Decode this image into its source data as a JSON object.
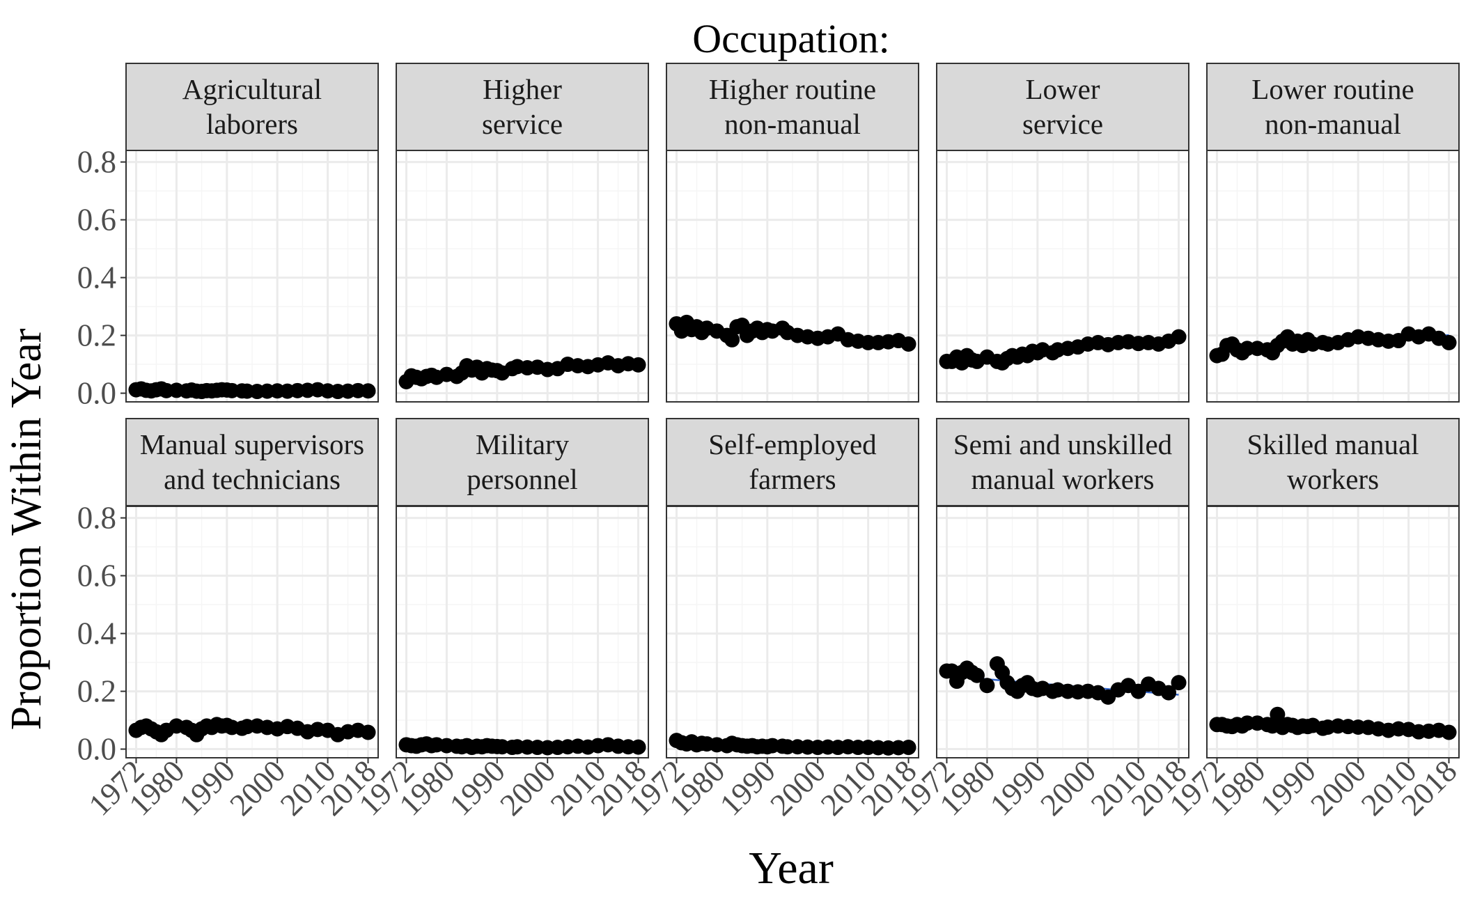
{
  "chart_data": {
    "type": "scatter",
    "title": "Occupation:",
    "xlabel": "Year",
    "ylabel": "Proportion Within Year",
    "xlim": [
      1970,
      2020
    ],
    "ylim": [
      -0.03,
      0.84
    ],
    "x_ticks": [
      1972,
      1980,
      1990,
      2000,
      2010,
      2018
    ],
    "x_tick_labels": [
      "1972",
      "1980",
      "1990",
      "2000",
      "2010",
      "2018"
    ],
    "y_ticks": [
      0,
      0.2,
      0.4,
      0.6,
      0.8
    ],
    "y_tick_labels": [
      "0.0",
      "0.2",
      "0.4",
      "0.6",
      "0.8"
    ],
    "grid": true,
    "layout": "facet 2 rows x 5 columns",
    "colors": {
      "point": "#000000",
      "strip_fill": "#d9d9d9",
      "strip_border": "#333333",
      "grid_major": "#ebebeb",
      "grid_minor": "#f5f5f5",
      "panel_border": "#333333",
      "trend_line": "#3366cc"
    },
    "years": [
      1972,
      1973,
      1974,
      1975,
      1976,
      1977,
      1978,
      1980,
      1982,
      1983,
      1984,
      1985,
      1986,
      1987,
      1988,
      1989,
      1990,
      1991,
      1993,
      1994,
      1996,
      1998,
      2000,
      2002,
      2004,
      2006,
      2008,
      2010,
      2012,
      2014,
      2016,
      2018
    ],
    "panels": [
      {
        "label_lines": [
          "Agricultural",
          "laborers"
        ],
        "values": [
          0.012,
          0.015,
          0.01,
          0.008,
          0.012,
          0.015,
          0.009,
          0.01,
          0.008,
          0.011,
          0.007,
          0.006,
          0.009,
          0.008,
          0.01,
          0.012,
          0.011,
          0.009,
          0.008,
          0.007,
          0.006,
          0.007,
          0.008,
          0.007,
          0.009,
          0.01,
          0.012,
          0.008,
          0.006,
          0.007,
          0.009,
          0.008
        ]
      },
      {
        "label_lines": [
          "Higher",
          "service"
        ],
        "values": [
          0.04,
          0.06,
          0.055,
          0.05,
          0.058,
          0.062,
          0.055,
          0.065,
          0.058,
          0.07,
          0.095,
          0.08,
          0.09,
          0.07,
          0.085,
          0.08,
          0.078,
          0.07,
          0.085,
          0.092,
          0.088,
          0.09,
          0.082,
          0.085,
          0.1,
          0.095,
          0.092,
          0.098,
          0.105,
          0.095,
          0.102,
          0.098
        ]
      },
      {
        "label_lines": [
          "Higher routine",
          "non-manual"
        ],
        "values": [
          0.24,
          0.215,
          0.245,
          0.22,
          0.23,
          0.21,
          0.225,
          0.215,
          0.2,
          0.185,
          0.23,
          0.235,
          0.2,
          0.215,
          0.225,
          0.21,
          0.22,
          0.215,
          0.225,
          0.21,
          0.2,
          0.195,
          0.19,
          0.195,
          0.205,
          0.185,
          0.18,
          0.175,
          0.175,
          0.178,
          0.182,
          0.17
        ]
      },
      {
        "label_lines": [
          "Lower",
          "service"
        ],
        "values": [
          0.11,
          0.11,
          0.125,
          0.105,
          0.13,
          0.115,
          0.11,
          0.125,
          0.11,
          0.105,
          0.12,
          0.13,
          0.125,
          0.135,
          0.13,
          0.145,
          0.14,
          0.15,
          0.14,
          0.15,
          0.155,
          0.16,
          0.17,
          0.175,
          0.168,
          0.175,
          0.178,
          0.172,
          0.175,
          0.17,
          0.18,
          0.195
        ]
      },
      {
        "label_lines": [
          "Lower routine",
          "non-manual"
        ],
        "values": [
          0.13,
          0.135,
          0.165,
          0.17,
          0.15,
          0.14,
          0.155,
          0.155,
          0.15,
          0.14,
          0.165,
          0.18,
          0.195,
          0.17,
          0.18,
          0.165,
          0.185,
          0.17,
          0.175,
          0.17,
          0.175,
          0.185,
          0.195,
          0.19,
          0.185,
          0.18,
          0.182,
          0.205,
          0.195,
          0.205,
          0.19,
          0.175
        ]
      },
      {
        "label_lines": [
          "Manual supervisors",
          "and technicians"
        ],
        "values": [
          0.065,
          0.075,
          0.08,
          0.07,
          0.06,
          0.05,
          0.065,
          0.08,
          0.075,
          0.065,
          0.05,
          0.07,
          0.08,
          0.075,
          0.085,
          0.08,
          0.082,
          0.075,
          0.072,
          0.078,
          0.08,
          0.075,
          0.07,
          0.078,
          0.072,
          0.06,
          0.068,
          0.065,
          0.05,
          0.06,
          0.065,
          0.058
        ]
      },
      {
        "label_lines": [
          "Military",
          "personnel"
        ],
        "values": [
          0.015,
          0.012,
          0.01,
          0.015,
          0.018,
          0.012,
          0.015,
          0.012,
          0.01,
          0.008,
          0.012,
          0.006,
          0.01,
          0.008,
          0.012,
          0.01,
          0.009,
          0.008,
          0.006,
          0.008,
          0.007,
          0.006,
          0.005,
          0.006,
          0.008,
          0.01,
          0.007,
          0.012,
          0.015,
          0.01,
          0.008,
          0.007
        ]
      },
      {
        "label_lines": [
          "Self-employed",
          "farmers"
        ],
        "values": [
          0.03,
          0.022,
          0.018,
          0.025,
          0.015,
          0.02,
          0.018,
          0.015,
          0.012,
          0.02,
          0.015,
          0.012,
          0.01,
          0.012,
          0.008,
          0.01,
          0.008,
          0.012,
          0.01,
          0.008,
          0.008,
          0.007,
          0.006,
          0.007,
          0.006,
          0.008,
          0.006,
          0.006,
          0.005,
          0.004,
          0.005,
          0.006
        ]
      },
      {
        "label_lines": [
          "Semi and unskilled",
          "manual workers"
        ],
        "values": [
          0.27,
          0.27,
          0.235,
          0.265,
          0.28,
          0.265,
          0.255,
          0.22,
          0.295,
          0.265,
          0.23,
          0.21,
          0.2,
          0.22,
          0.23,
          0.21,
          0.205,
          0.21,
          0.2,
          0.205,
          0.2,
          0.198,
          0.2,
          0.195,
          0.18,
          0.205,
          0.22,
          0.2,
          0.225,
          0.21,
          0.195,
          0.23
        ]
      },
      {
        "label_lines": [
          "Skilled manual",
          "workers"
        ],
        "values": [
          0.085,
          0.085,
          0.08,
          0.078,
          0.085,
          0.08,
          0.09,
          0.09,
          0.085,
          0.08,
          0.12,
          0.075,
          0.085,
          0.082,
          0.075,
          0.08,
          0.078,
          0.082,
          0.072,
          0.076,
          0.08,
          0.078,
          0.076,
          0.075,
          0.07,
          0.065,
          0.07,
          0.068,
          0.06,
          0.062,
          0.065,
          0.058
        ]
      }
    ]
  }
}
